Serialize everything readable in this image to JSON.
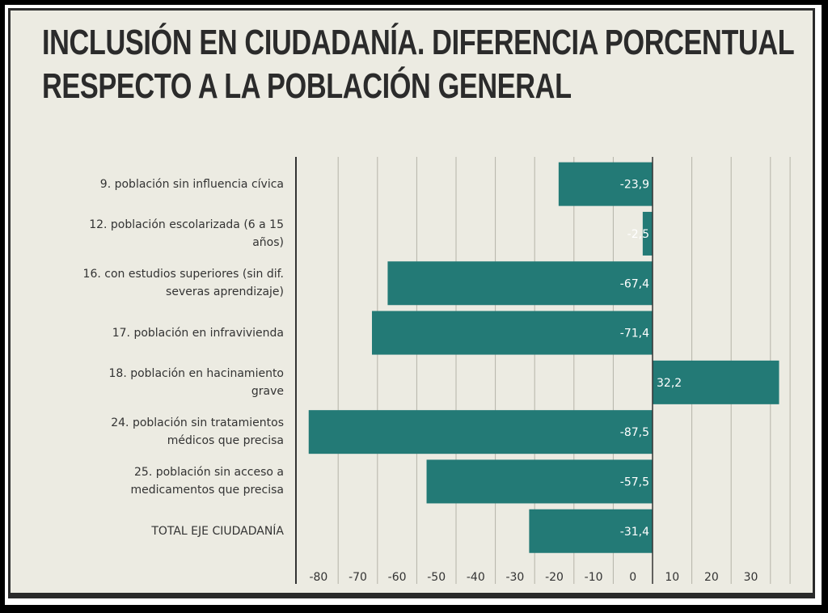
{
  "chart_data": {
    "type": "bar",
    "orientation": "horizontal",
    "title": "INCLUSIÓN EN CIUDADANÍA. DIFERENCIA PORCENTUAL RESPECTO A LA POBLACIÓN GENERAL",
    "title_lines": [
      "INCLUSIÓN EN CIUDADANÍA. DIFERENCIA PORCENTUAL",
      "RESPECTO A LA POBLACIÓN GENERAL"
    ],
    "categories": [
      "9. población sin influencia cívica",
      "12. población escolarizada (6 a 15\naños)",
      "16. con estudios superiores (sin dif.\nseveras aprendizaje)",
      "17. población en infravivienda",
      "18. población en hacinamiento\ngrave",
      "24. población sin tratamientos\nmédicos que precisa",
      "25. población sin acceso a\nmedicamentos que precisa",
      "TOTAL EJE CIUDADANÍA"
    ],
    "values": [
      -23.9,
      -2.5,
      -67.4,
      -71.4,
      32.2,
      -87.5,
      -57.5,
      -31.4
    ],
    "data_labels": [
      "-23,9",
      "-2,5",
      "-67,4",
      "-71,4",
      "32,2",
      "-87,5",
      "-57,5",
      "-31,4"
    ],
    "xlim": [
      -90,
      35
    ],
    "x_ticks": [
      -80,
      -70,
      -60,
      -50,
      -40,
      -30,
      -20,
      -10,
      0,
      10,
      20,
      30
    ],
    "x_tick_labels": [
      "-80",
      "-70",
      "-60",
      "-50",
      "-40",
      "-30",
      "-20",
      "-10",
      "0",
      "10",
      "20",
      "30"
    ],
    "xlabel": "",
    "ylabel": "",
    "grid": "vertical",
    "legend": "none",
    "colors": {
      "bar": "#237a76",
      "background": "#ecebe2",
      "grid": "#b5b3a8"
    }
  }
}
